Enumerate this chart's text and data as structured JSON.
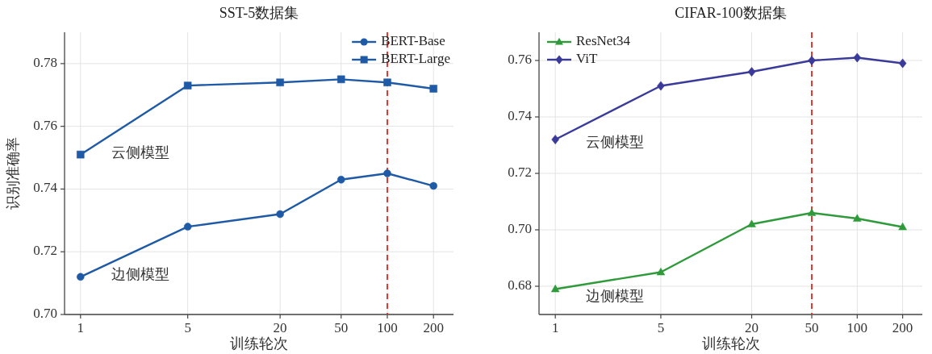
{
  "chart_data": [
    {
      "type": "line",
      "title": "SST-5数据集",
      "xlabel": "训练轮次",
      "ylabel": "识别准确率",
      "x": [
        1,
        5,
        20,
        50,
        100,
        200
      ],
      "log": "x",
      "xlim": [
        0.787,
        270
      ],
      "xticks": [
        1,
        5,
        20,
        50,
        100,
        200
      ],
      "ylim": [
        0.7,
        0.79
      ],
      "yticks": [
        {
          "value": 0.7,
          "label": "0.70"
        },
        {
          "value": 0.72,
          "label": "0.72"
        },
        {
          "value": 0.74,
          "label": "0.74"
        },
        {
          "value": 0.76,
          "label": "0.76"
        },
        {
          "value": 0.78,
          "label": "0.78"
        }
      ],
      "grid": true,
      "legend": "top right",
      "series": [
        {
          "name": "BERT-Base",
          "color": "#1f5aa6",
          "marker": "circle",
          "values": [
            0.712,
            0.728,
            0.732,
            0.743,
            0.745,
            0.741
          ]
        },
        {
          "name": "BERT-Large",
          "color": "#1f5aa6",
          "marker": "square",
          "values": [
            0.751,
            0.773,
            0.774,
            0.775,
            0.774,
            0.772
          ]
        }
      ],
      "ref_lines": [
        {
          "axis": "x",
          "value": 100,
          "color": "#e03c31",
          "line_style": "dashed"
        }
      ],
      "annotations": [
        "云侧模型",
        "边侧模型"
      ]
    },
    {
      "type": "line",
      "title": "CIFAR-100数据集",
      "xlabel": "训练轮次",
      "x": [
        1,
        5,
        20,
        50,
        100,
        200
      ],
      "log": "x",
      "xlim": [
        0.78,
        270
      ],
      "xticks": [
        1,
        5,
        20,
        50,
        100,
        200
      ],
      "ylim": [
        0.67,
        0.77
      ],
      "yticks": [
        {
          "value": 0.68,
          "label": "0.68"
        },
        {
          "value": 0.7,
          "label": "0.70"
        },
        {
          "value": 0.72,
          "label": "0.72"
        },
        {
          "value": 0.74,
          "label": "0.74"
        },
        {
          "value": 0.76,
          "label": "0.76"
        }
      ],
      "grid": true,
      "legend": "top left",
      "series": [
        {
          "name": "ResNet34",
          "color": "#2e9a3a",
          "marker": "triangle",
          "values": [
            0.679,
            0.685,
            0.702,
            0.706,
            0.704,
            0.701
          ]
        },
        {
          "name": "ViT",
          "color": "#3a3a9a",
          "marker": "diamond",
          "values": [
            0.732,
            0.751,
            0.756,
            0.76,
            0.761,
            0.759
          ]
        }
      ],
      "ref_lines": [
        {
          "axis": "x",
          "value": 50,
          "color": "#e03c31",
          "line_style": "dashed"
        }
      ],
      "annotations": [
        "云侧模型",
        "边侧模型"
      ]
    }
  ]
}
